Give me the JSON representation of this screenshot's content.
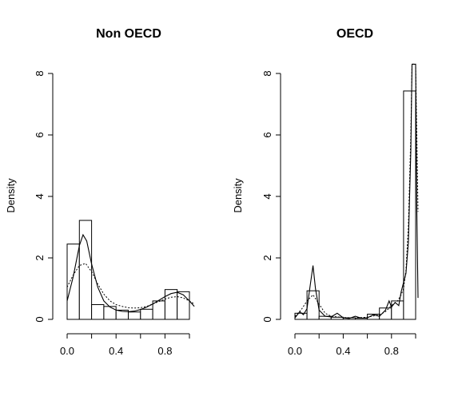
{
  "chart_data": [
    {
      "type": "bar",
      "title": "Non OECD",
      "xlabel": "",
      "ylabel": "Density",
      "xlim": [
        0,
        1
      ],
      "ylim": [
        0,
        8
      ],
      "x_ticks": [
        "0.0",
        "0.4",
        "0.8"
      ],
      "y_ticks": [
        "0",
        "2",
        "4",
        "6",
        "8"
      ],
      "bins": [
        {
          "start": 0.0,
          "end": 0.1,
          "density": 2.45
        },
        {
          "start": 0.1,
          "end": 0.2,
          "density": 3.22
        },
        {
          "start": 0.2,
          "end": 0.3,
          "density": 0.48
        },
        {
          "start": 0.3,
          "end": 0.4,
          "density": 0.42
        },
        {
          "start": 0.4,
          "end": 0.5,
          "density": 0.3
        },
        {
          "start": 0.5,
          "end": 0.6,
          "density": 0.24
        },
        {
          "start": 0.6,
          "end": 0.7,
          "density": 0.33
        },
        {
          "start": 0.7,
          "end": 0.8,
          "density": 0.6
        },
        {
          "start": 0.8,
          "end": 0.9,
          "density": 0.97
        },
        {
          "start": 0.9,
          "end": 1.0,
          "density": 0.9
        }
      ],
      "series": [
        {
          "style": "solid",
          "x": [
            0.0,
            0.05,
            0.1,
            0.13,
            0.16,
            0.2,
            0.25,
            0.3,
            0.35,
            0.4,
            0.45,
            0.5,
            0.55,
            0.6,
            0.65,
            0.7,
            0.75,
            0.8,
            0.85,
            0.9,
            0.95,
            1.0,
            1.04
          ],
          "y": [
            0.6,
            1.4,
            2.4,
            2.75,
            2.55,
            1.8,
            1.05,
            0.6,
            0.4,
            0.3,
            0.26,
            0.25,
            0.27,
            0.32,
            0.4,
            0.5,
            0.62,
            0.74,
            0.84,
            0.88,
            0.8,
            0.6,
            0.42
          ]
        },
        {
          "style": "dotted",
          "x": [
            0.0,
            0.05,
            0.1,
            0.15,
            0.2,
            0.25,
            0.3,
            0.35,
            0.4,
            0.45,
            0.5,
            0.55,
            0.6,
            0.65,
            0.7,
            0.75,
            0.8,
            0.85,
            0.9,
            0.95,
            1.0,
            1.04
          ],
          "y": [
            1.05,
            1.45,
            1.75,
            1.82,
            1.55,
            1.15,
            0.82,
            0.6,
            0.48,
            0.42,
            0.38,
            0.37,
            0.38,
            0.42,
            0.5,
            0.58,
            0.66,
            0.72,
            0.74,
            0.7,
            0.6,
            0.5
          ]
        }
      ]
    },
    {
      "type": "bar",
      "title": "OECD",
      "xlabel": "",
      "ylabel": "Density",
      "xlim": [
        0,
        1
      ],
      "ylim": [
        0,
        8
      ],
      "x_ticks": [
        "0.0",
        "0.4",
        "0.8"
      ],
      "y_ticks": [
        "0",
        "2",
        "4",
        "6",
        "8"
      ],
      "bins": [
        {
          "start": 0.0,
          "end": 0.1,
          "density": 0.2
        },
        {
          "start": 0.1,
          "end": 0.2,
          "density": 0.93
        },
        {
          "start": 0.2,
          "end": 0.3,
          "density": 0.1
        },
        {
          "start": 0.3,
          "end": 0.4,
          "density": 0.07
        },
        {
          "start": 0.4,
          "end": 0.5,
          "density": 0.05
        },
        {
          "start": 0.5,
          "end": 0.6,
          "density": 0.04
        },
        {
          "start": 0.6,
          "end": 0.7,
          "density": 0.17
        },
        {
          "start": 0.7,
          "end": 0.8,
          "density": 0.37
        },
        {
          "start": 0.8,
          "end": 0.9,
          "density": 0.6
        },
        {
          "start": 0.9,
          "end": 1.0,
          "density": 7.43
        }
      ],
      "series": [
        {
          "style": "solid",
          "x": [
            0.0,
            0.04,
            0.07,
            0.1,
            0.13,
            0.15,
            0.17,
            0.2,
            0.25,
            0.3,
            0.35,
            0.4,
            0.45,
            0.5,
            0.55,
            0.6,
            0.65,
            0.7,
            0.75,
            0.78,
            0.8,
            0.83,
            0.86,
            0.88,
            0.9,
            0.92,
            0.94,
            0.96,
            0.97,
            0.98,
            0.99,
            1.0,
            1.01,
            1.02
          ],
          "y": [
            0.05,
            0.25,
            0.15,
            0.35,
            1.2,
            1.75,
            1.0,
            0.3,
            0.1,
            0.08,
            0.2,
            0.05,
            0.03,
            0.1,
            0.04,
            0.05,
            0.15,
            0.1,
            0.3,
            0.6,
            0.4,
            0.55,
            0.45,
            0.9,
            1.2,
            1.5,
            2.5,
            5.5,
            8.3,
            8.3,
            8.3,
            8.3,
            3.5,
            0.7
          ]
        },
        {
          "style": "dotted",
          "x": [
            0.0,
            0.05,
            0.1,
            0.15,
            0.2,
            0.25,
            0.3,
            0.4,
            0.5,
            0.6,
            0.7,
            0.75,
            0.8,
            0.85,
            0.88,
            0.9,
            0.92,
            0.94,
            0.96,
            0.97,
            0.98,
            0.99,
            1.0,
            1.01,
            1.02
          ],
          "y": [
            0.1,
            0.3,
            0.6,
            0.8,
            0.5,
            0.2,
            0.1,
            0.06,
            0.05,
            0.07,
            0.15,
            0.25,
            0.45,
            0.6,
            0.8,
            1.0,
            1.6,
            3.0,
            6.0,
            8.3,
            8.3,
            8.3,
            8.3,
            6.0,
            3.5
          ]
        }
      ]
    }
  ]
}
